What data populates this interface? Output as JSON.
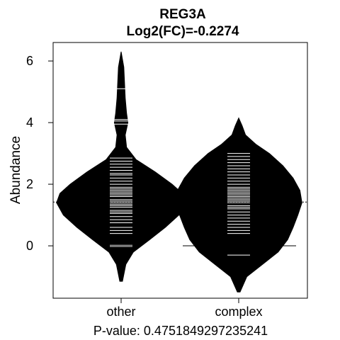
{
  "chart_data": {
    "type": "beanplot",
    "title": "REG3A",
    "subtitle": "Log2(FC)=-0.2274",
    "xlabel": "",
    "ylabel": "Abundance",
    "footer": "P-value: 0.4751849297235241",
    "categories": [
      "other",
      "complex"
    ],
    "ylim": [
      -1.7,
      6.6
    ],
    "yticks": [
      0,
      2,
      4,
      6
    ],
    "overall_mean": 1.42,
    "groups": [
      {
        "name": "other",
        "mean": 1.55,
        "range": [
          -1.15,
          6.3
        ],
        "density": [
          [
            -1.15,
            0.02
          ],
          [
            -0.6,
            0.07
          ],
          [
            -0.2,
            0.18
          ],
          [
            0.2,
            0.42
          ],
          [
            0.6,
            0.65
          ],
          [
            1.0,
            0.85
          ],
          [
            1.4,
            0.95
          ],
          [
            1.7,
            0.9
          ],
          [
            2.0,
            0.75
          ],
          [
            2.4,
            0.5
          ],
          [
            2.8,
            0.22
          ],
          [
            3.2,
            0.08
          ],
          [
            3.6,
            0.06
          ],
          [
            4.0,
            0.1
          ],
          [
            4.3,
            0.08
          ],
          [
            4.8,
            0.06
          ],
          [
            5.3,
            0.05
          ],
          [
            5.8,
            0.04
          ],
          [
            6.3,
            0.0
          ]
        ],
        "values": [
          -0.02,
          0.0,
          0.02,
          0.4,
          0.5,
          0.6,
          0.75,
          0.85,
          0.95,
          1.05,
          1.1,
          1.15,
          1.25,
          1.3,
          1.35,
          1.4,
          1.45,
          1.5,
          1.55,
          1.6,
          1.65,
          1.7,
          1.75,
          1.8,
          1.85,
          1.9,
          2.0,
          2.1,
          2.2,
          2.3,
          2.35,
          2.45,
          2.55,
          2.65,
          2.75,
          2.85,
          3.95,
          4.05,
          4.1,
          5.1
        ]
      },
      {
        "name": "complex",
        "mean": 1.35,
        "range": [
          -1.5,
          4.15
        ],
        "density": [
          [
            -1.5,
            0.02
          ],
          [
            -1.0,
            0.12
          ],
          [
            -0.6,
            0.35
          ],
          [
            -0.2,
            0.58
          ],
          [
            0.2,
            0.72
          ],
          [
            0.6,
            0.8
          ],
          [
            1.0,
            0.87
          ],
          [
            1.4,
            0.93
          ],
          [
            1.8,
            0.9
          ],
          [
            2.2,
            0.8
          ],
          [
            2.6,
            0.65
          ],
          [
            3.0,
            0.45
          ],
          [
            3.3,
            0.25
          ],
          [
            3.6,
            0.1
          ],
          [
            3.9,
            0.05
          ],
          [
            4.15,
            0.0
          ]
        ],
        "values": [
          -0.3,
          0.0,
          0.4,
          0.5,
          0.6,
          0.7,
          0.8,
          0.9,
          1.0,
          1.1,
          1.2,
          1.25,
          1.3,
          1.35,
          1.4,
          1.45,
          1.5,
          1.55,
          1.6,
          1.65,
          1.7,
          1.75,
          1.8,
          1.85,
          1.9,
          2.0,
          2.1,
          2.2,
          2.3,
          2.4,
          2.5,
          2.6,
          2.7,
          2.8,
          2.9,
          3.0
        ]
      }
    ]
  }
}
